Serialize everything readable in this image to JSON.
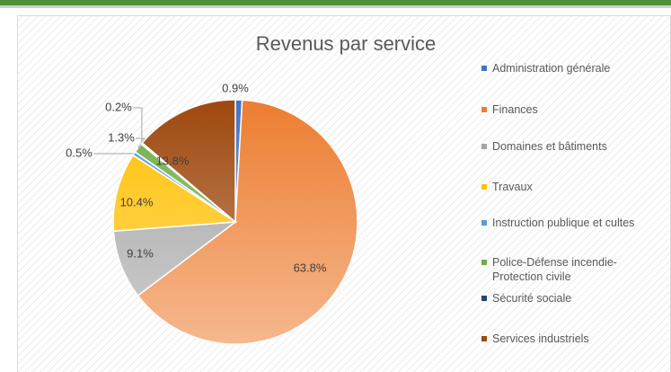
{
  "chart_data": {
    "type": "pie",
    "title": "Revenus par service",
    "categories": [
      "Administration générale",
      "Finances",
      "Domaines et bâtiments",
      "Travaux",
      "Instruction publique et cultes",
      "Police-Défense incendie-Protection civile",
      "Sécurité sociale",
      "Services industriels"
    ],
    "values": [
      0.9,
      63.8,
      9.1,
      10.4,
      0.5,
      1.3,
      0.2,
      13.8
    ],
    "value_labels": [
      "0.9%",
      "63.8%",
      "9.1%",
      "10.4%",
      "0.5%",
      "1.3%",
      "0.2%",
      "13.8%"
    ],
    "colors": [
      "#4472c4",
      "#ed7d31",
      "#a5a5a5",
      "#ffc000",
      "#5b9bd5",
      "#70ad47",
      "#264478",
      "#9e480e"
    ],
    "legend": "right"
  }
}
